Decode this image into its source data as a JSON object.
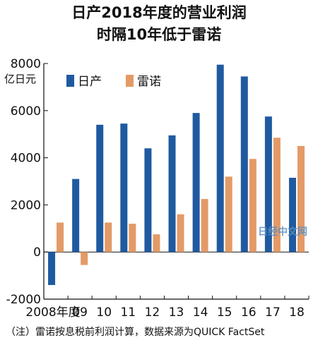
{
  "chart_data": {
    "type": "bar",
    "title": "日产2018年度的营业利润",
    "subtitle": "时隔10年低于雷诺",
    "ylabel": "亿日元",
    "xlabel": "",
    "ylim": [
      -2000,
      8000
    ],
    "yticks": [
      -2000,
      0,
      2000,
      4000,
      6000,
      8000
    ],
    "categories": [
      "2008年度",
      "09",
      "10",
      "11",
      "12",
      "13",
      "14",
      "15",
      "16",
      "17",
      "18"
    ],
    "series": [
      {
        "name": "日产",
        "color": "#1f5aa0",
        "values": [
          -1400,
          3100,
          5400,
          5450,
          4400,
          4950,
          5900,
          7950,
          7450,
          5750,
          3150
        ]
      },
      {
        "name": "雷诺",
        "color": "#e39a66",
        "values": [
          1250,
          -550,
          1250,
          1200,
          750,
          1600,
          2250,
          3200,
          3950,
          4850,
          4500
        ]
      }
    ],
    "grid": false,
    "legend": "top-left"
  },
  "note": "（注）雷诺按息税前利润计算，数据来源为QUICK FactSet",
  "watermark": "日经中文网"
}
